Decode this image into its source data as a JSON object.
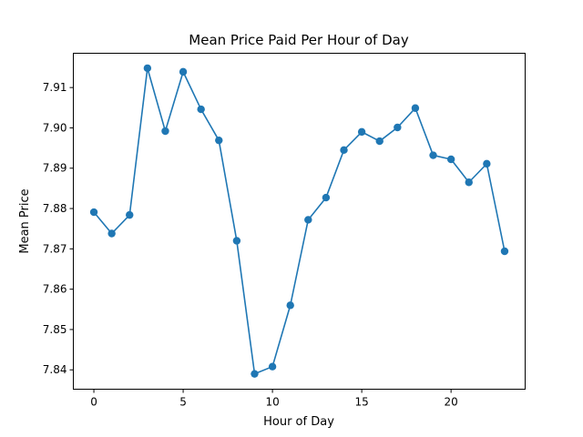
{
  "chart_data": {
    "type": "line",
    "title": "Mean Price Paid Per Hour of Day",
    "xlabel": "Hour of Day",
    "ylabel": "Mean Price",
    "xlim": [
      -1.15,
      24.15
    ],
    "ylim": [
      7.8352,
      7.9185
    ],
    "xticks": [
      0,
      5,
      10,
      15,
      20
    ],
    "xtick_labels": [
      "0",
      "5",
      "10",
      "15",
      "20"
    ],
    "yticks": [
      7.84,
      7.85,
      7.86,
      7.87,
      7.88,
      7.89,
      7.9,
      7.91
    ],
    "ytick_labels": [
      "7.84",
      "7.85",
      "7.86",
      "7.87",
      "7.88",
      "7.89",
      "7.90",
      "7.91"
    ],
    "grid": false,
    "marker": "circle",
    "color": "#1f77b4",
    "x": [
      0,
      1,
      2,
      3,
      4,
      5,
      6,
      7,
      8,
      9,
      10,
      11,
      12,
      13,
      14,
      15,
      16,
      17,
      18,
      19,
      20,
      21,
      22,
      23
    ],
    "values": [
      7.8791,
      7.8738,
      7.8784,
      7.9148,
      7.8992,
      7.9139,
      7.9046,
      7.8969,
      7.872,
      7.839,
      7.8408,
      7.856,
      7.8772,
      7.8827,
      7.8945,
      7.899,
      7.8967,
      7.9001,
      7.9049,
      7.8932,
      7.8922,
      7.8865,
      7.8911,
      7.8694
    ]
  }
}
